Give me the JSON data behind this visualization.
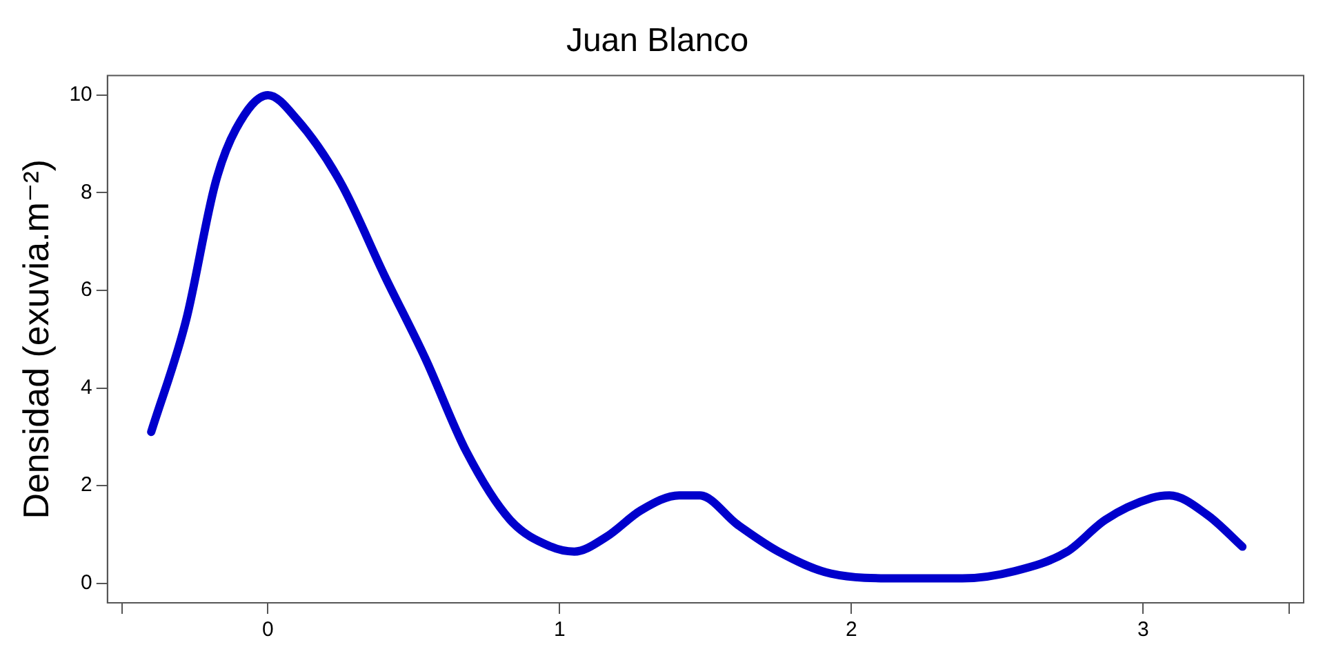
{
  "chart_data": {
    "type": "line",
    "title": "Juan Blanco",
    "ylabel": "Densidad (exuvia.m⁻²)",
    "xlim": [
      -0.55,
      3.55
    ],
    "xticks": [
      {
        "value": -0.5,
        "label": null
      },
      0,
      1,
      2,
      3,
      {
        "value": 3.5,
        "label": null
      }
    ],
    "ylim": [
      -0.4,
      10.4
    ],
    "yticks": [
      0,
      2,
      4,
      6,
      8,
      10
    ],
    "grid": false,
    "legend": false,
    "marker": "none",
    "line_style": "solid",
    "series": [
      {
        "color": "#0000cc",
        "x": [
          -0.4,
          -0.28,
          -0.18,
          -0.11,
          0.0,
          0.1,
          0.25,
          0.4,
          0.54,
          0.68,
          0.83,
          0.97,
          1.05,
          1.16,
          1.28,
          1.41,
          1.48,
          1.61,
          1.75,
          1.93,
          2.16,
          2.38,
          2.56,
          2.74,
          2.87,
          3.03,
          3.09,
          3.22,
          3.34
        ],
        "values": [
          3.1,
          5.4,
          8.2,
          9.3,
          10.0,
          9.5,
          8.2,
          6.3,
          4.6,
          2.7,
          1.3,
          0.75,
          0.65,
          0.95,
          1.5,
          1.8,
          1.8,
          1.2,
          0.65,
          0.2,
          0.1,
          0.1,
          0.25,
          0.65,
          1.3,
          1.75,
          1.8,
          1.4,
          0.75
        ]
      }
    ]
  }
}
